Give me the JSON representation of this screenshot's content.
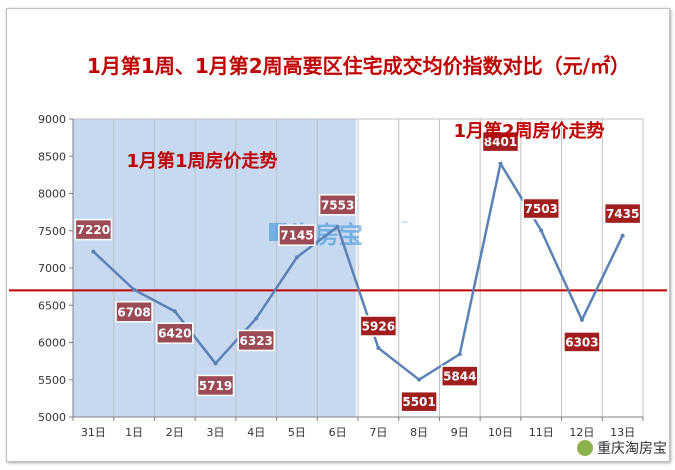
{
  "colors": {
    "title": "#c00000",
    "line": "#5b82b6",
    "highlight": "#c6d9f1",
    "label_week1": "#9b4b56",
    "label_week2": "#a01e1e",
    "reference_line": "#c00000",
    "grid": "#c0c0c0"
  },
  "icons": {
    "footer": "wechat-logo-icon"
  },
  "watermark": {
    "text": "淘房宝",
    "tm": "™"
  },
  "footer": {
    "logo_text": "重庆淘房宝"
  },
  "chart_data": {
    "type": "line",
    "title": "1月第1周、1月第2周高要区住宅成交均价指数对比（元/㎡）",
    "categories": [
      "31日",
      "1日",
      "2日",
      "3日",
      "4日",
      "5日",
      "6日",
      "7日",
      "8日",
      "9日",
      "10日",
      "11日",
      "12日",
      "13日"
    ],
    "values": [
      7220,
      6708,
      6420,
      5719,
      6323,
      7145,
      7553,
      5926,
      5501,
      5844,
      8401,
      7503,
      6303,
      7435
    ],
    "data_labels": [
      "7220",
      "6708",
      "6420",
      "5719",
      "6323",
      "7145",
      "7553",
      "5926",
      "5501",
      "5844",
      "8401",
      "7503",
      "6303",
      "7435"
    ],
    "ylim": [
      5000,
      9000
    ],
    "yticks": [
      5000,
      5500,
      6000,
      6500,
      7000,
      7500,
      8000,
      8500,
      9000
    ],
    "ytick_labels": [
      "5000",
      "5500",
      "6000",
      "6500",
      "7000",
      "7500",
      "8000",
      "8500",
      "9000"
    ],
    "reference_line": 6700,
    "periods": [
      {
        "label": "1月第1周房价走势",
        "from": "31日",
        "to": "6日"
      },
      {
        "label": "1月第2周房价走势",
        "from": "7日",
        "to": "13日"
      }
    ],
    "grid": "vertical",
    "xlabel": "",
    "ylabel": ""
  }
}
